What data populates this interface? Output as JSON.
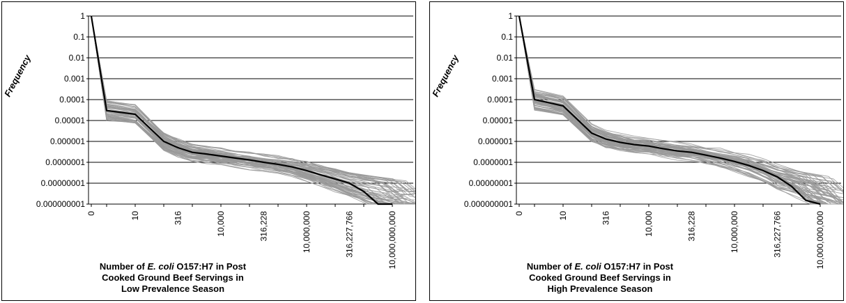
{
  "chart_data": [
    {
      "type": "line",
      "ylabel": "Frequency",
      "y_scale": "log",
      "ylim": [
        1e-09,
        1
      ],
      "y_ticks": [
        "1",
        "0.1",
        "0.01",
        "0.001",
        "0.0001",
        "0.00001",
        "0.000001",
        "0.0000001",
        "0.00000001",
        "0.000000001"
      ],
      "x_ticks": [
        "0",
        "10",
        "316",
        "10,000",
        "316,228",
        "10,000,000",
        "316,227,766",
        "10,000,000,000"
      ],
      "xlabel": {
        "line1_pre": "Number of ",
        "line1_italic": "E. coli",
        "line1_post": " O157:H7 in Post",
        "line2": "Cooked Ground Beef Servings in",
        "line3": "Low Prevalence Season"
      },
      "grid": "horizontal",
      "series": [
        {
          "role": "mean",
          "color": "#000000",
          "x": [
            0,
            1,
            10,
            100,
            316,
            1000,
            3162,
            10000,
            31623,
            100000,
            316228,
            1000000,
            3162278,
            10000000,
            31622777,
            100000000,
            316227766,
            1000000000,
            3162277660,
            10000000000
          ],
          "y": [
            1,
            3e-05,
            2e-05,
            1e-06,
            5e-07,
            3e-07,
            2.5e-07,
            2e-07,
            1.6e-07,
            1.3e-07,
            1e-07,
            8e-08,
            6e-08,
            4e-08,
            2.5e-08,
            1.6e-08,
            1e-08,
            4e-09,
            1e-09,
            1e-09
          ]
        },
        {
          "role": "uncertainty-iterations",
          "color": "#999999",
          "count": 60
        }
      ]
    },
    {
      "type": "line",
      "ylabel": "Frequency",
      "y_scale": "log",
      "ylim": [
        1e-09,
        1
      ],
      "y_ticks": [
        "1",
        "0.1",
        "0.01",
        "0.001",
        "0.0001",
        "0.00001",
        "0.000001",
        "0.0000001",
        "0.00000001",
        "0.000000001"
      ],
      "x_ticks": [
        "0",
        "10",
        "316",
        "10,000",
        "316,228",
        "10,000,000",
        "316,227,766",
        "10,000,000,000"
      ],
      "xlabel": {
        "line1_pre": "Number of ",
        "line1_italic": "E. coli",
        "line1_post": " O157:H7 in Post",
        "line2": "Cooked Ground Beef Servings in",
        "line3": "High Prevalence Season"
      },
      "grid": "horizontal",
      "series": [
        {
          "role": "mean",
          "color": "#000000",
          "x": [
            0,
            1,
            10,
            100,
            316,
            1000,
            3162,
            10000,
            31623,
            100000,
            316228,
            1000000,
            3162278,
            10000000,
            31622777,
            100000000,
            316227766,
            1000000000,
            3162277660,
            10000000000
          ],
          "y": [
            1,
            0.0001,
            5e-05,
            2.5e-06,
            1.3e-06,
            9e-07,
            7e-07,
            6e-07,
            4.5e-07,
            3.5e-07,
            3e-07,
            2.2e-07,
            1.6e-07,
            1.1e-07,
            7e-08,
            4e-08,
            2e-08,
            7e-09,
            1.5e-09,
            1e-09
          ]
        },
        {
          "role": "uncertainty-iterations",
          "color": "#999999",
          "count": 60
        }
      ]
    }
  ]
}
